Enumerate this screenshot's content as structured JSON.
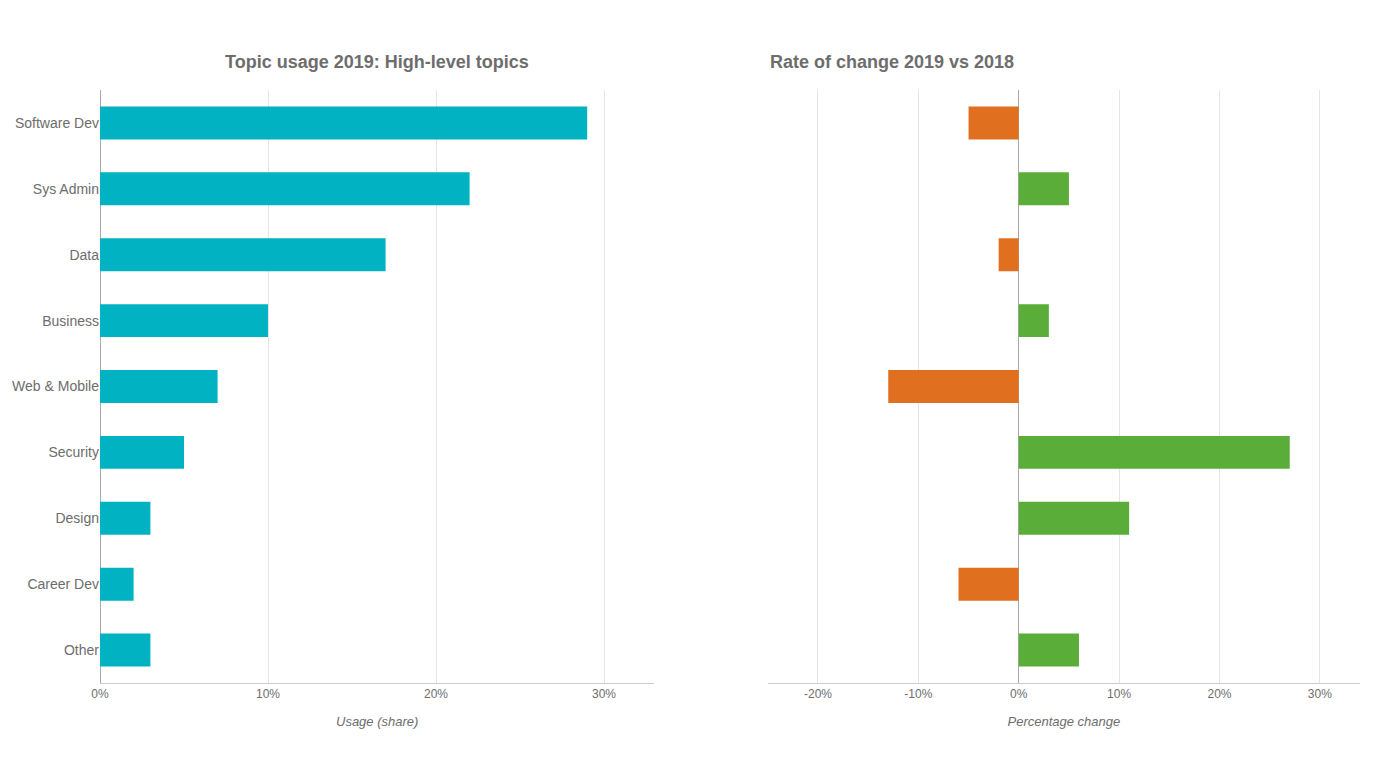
{
  "chart_data": [
    {
      "type": "bar",
      "orientation": "horizontal",
      "title": "Topic usage 2019: High-level topics",
      "xlabel": "Usage (share)",
      "categories": [
        "Software Dev",
        "Sys Admin",
        "Data",
        "Business",
        "Web & Mobile",
        "Security",
        "Design",
        "Career Dev",
        "Other"
      ],
      "values": [
        29,
        22,
        17,
        10,
        7,
        5,
        3,
        2,
        3
      ],
      "color": "#00B2C2",
      "xlim": [
        0,
        33
      ],
      "xticks": [
        {
          "value": 0,
          "label": "0%"
        },
        {
          "value": 10,
          "label": "10%"
        },
        {
          "value": 20,
          "label": "20%"
        },
        {
          "value": 30,
          "label": "30%"
        }
      ],
      "grid": true
    },
    {
      "type": "bar",
      "orientation": "horizontal",
      "title": "Rate of change 2019 vs 2018",
      "xlabel": "Percentage change",
      "categories": [
        "Software Dev",
        "Sys Admin",
        "Data",
        "Business",
        "Web & Mobile",
        "Security",
        "Design",
        "Career Dev",
        "Other"
      ],
      "values": [
        -5,
        5,
        -2,
        3,
        -13,
        27,
        11,
        -6,
        6
      ],
      "colors": [
        "#E07020",
        "#5BAD3A",
        "#E07020",
        "#5BAD3A",
        "#E07020",
        "#5BAD3A",
        "#5BAD3A",
        "#E07020",
        "#5BAD3A"
      ],
      "xlim": [
        -25,
        34
      ],
      "xticks": [
        {
          "value": -20,
          "label": "-20%"
        },
        {
          "value": -10,
          "label": "-10%"
        },
        {
          "value": 0,
          "label": "0%"
        },
        {
          "value": 10,
          "label": "10%"
        },
        {
          "value": 20,
          "label": "20%"
        },
        {
          "value": 30,
          "label": "30%"
        }
      ],
      "grid": true,
      "tick_labels": "x"
    }
  ]
}
